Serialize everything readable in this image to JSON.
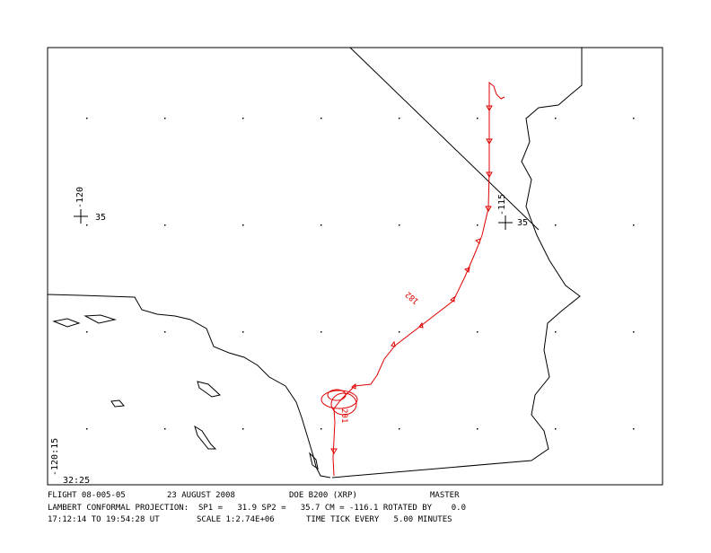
{
  "map": {
    "labels": {
      "lon_west": "-120",
      "lat_west": "35",
      "lon_east": "-115",
      "lat_east": "35",
      "corner_lon": "-120:15",
      "corner_lat": "32:25",
      "track_label_1": "182",
      "track_label_2": "201"
    },
    "footer": {
      "flight": "FLIGHT 08-005-05",
      "date": "23 AUGUST 2008",
      "aircraft": "DOE B200 (XRP)",
      "file": "MASTER",
      "projection": "LAMBERT CONFORMAL PROJECTION:  SP1 =   31.9 SP2 =   35.7 CM = -116.1 ROTATED BY    0.0",
      "time": "17:12:14 TO 19:54:28 UT",
      "scale": "SCALE 1:2.74E+06",
      "tick": "TIME TICK EVERY   5.00 MINUTES"
    }
  }
}
